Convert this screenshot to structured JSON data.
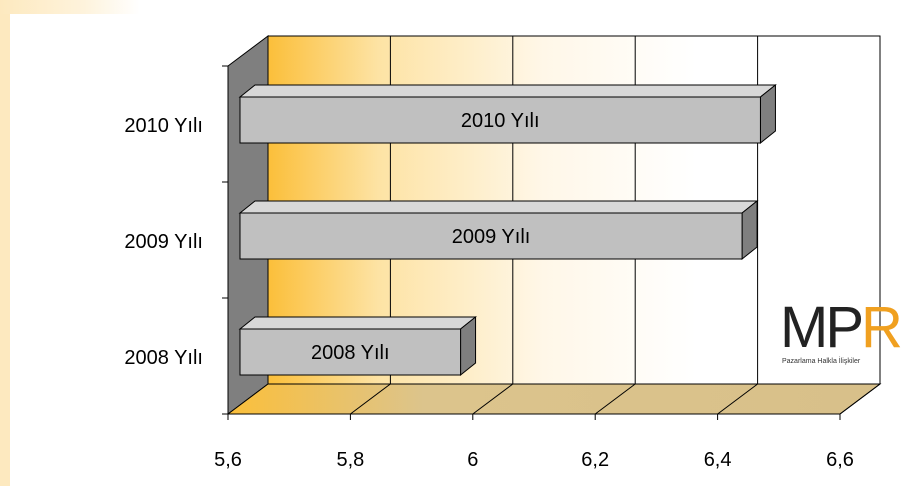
{
  "chart_data": {
    "type": "bar",
    "orientation": "horizontal",
    "categories": [
      "2010 Yılı",
      "2009 Yılı",
      "2008 Yılı"
    ],
    "values": [
      6.47,
      6.44,
      5.98
    ],
    "bar_labels": [
      "2010 Yılı",
      "2009 Yılı",
      "2008 Yılı"
    ],
    "x_ticks": [
      "5,6",
      "5,8",
      "6",
      "6,2",
      "6,4",
      "6,6"
    ],
    "xlim": [
      5.6,
      6.6
    ],
    "title": "",
    "xlabel": "",
    "ylabel": "",
    "grid": true,
    "style": "3d",
    "colors": {
      "bar": "#c0c0c0",
      "bar_top": "#d8d8d8",
      "bar_side": "#7f7f7f",
      "floor": "#dcc48c",
      "side_wall": "#7f7f7f",
      "back_wall_accent": "#fbbf3a"
    }
  },
  "logo": {
    "text_main": "MP",
    "text_accent": "R",
    "tagline": "Pazarlama Halkla İlişkiler"
  }
}
